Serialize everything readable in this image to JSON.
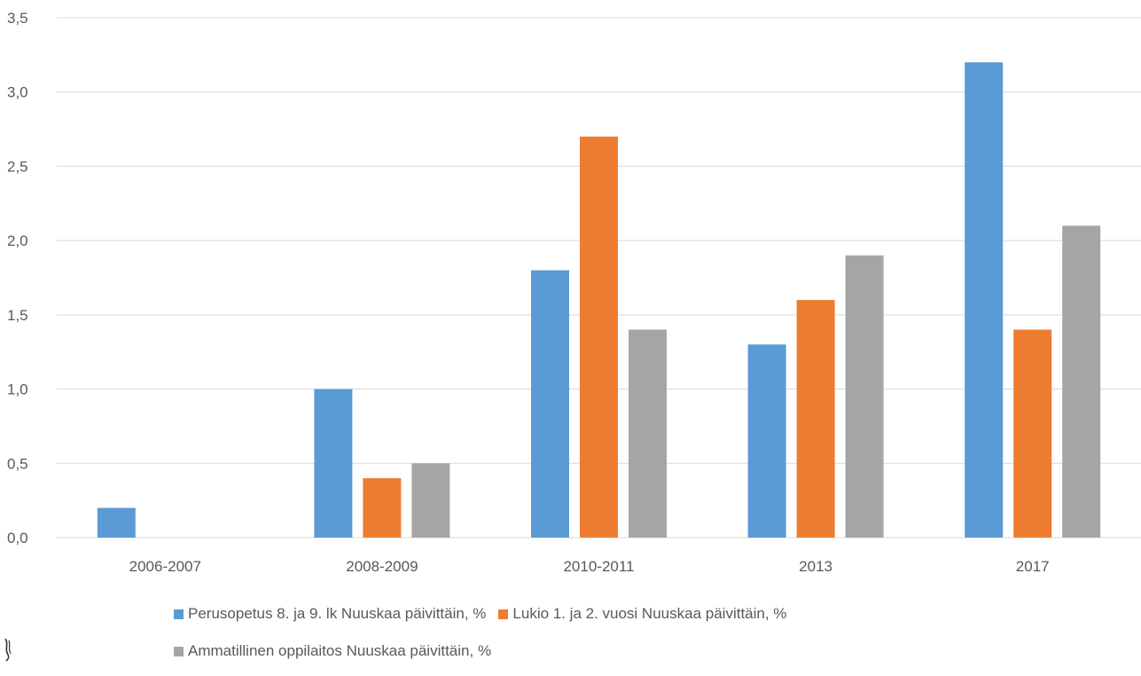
{
  "chart_data": {
    "type": "bar",
    "categories": [
      "2006-2007",
      "2008-2009",
      "2010-2011",
      "2013",
      "2017"
    ],
    "series": [
      {
        "name": "Perusopetus 8. ja 9. lk Nuuskaa päivittäin, %",
        "color": "#5b9bd5",
        "values": [
          0.2,
          1.0,
          1.8,
          1.3,
          3.2
        ]
      },
      {
        "name": "Lukio 1. ja 2. vuosi Nuuskaa päivittäin, %",
        "color": "#ed7d31",
        "values": [
          null,
          0.4,
          2.7,
          1.6,
          1.4
        ]
      },
      {
        "name": "Ammatillinen oppilaitos Nuuskaa päivittäin, %",
        "color": "#a5a5a5",
        "values": [
          null,
          0.5,
          1.4,
          1.9,
          2.1
        ]
      }
    ],
    "yticks": [
      "0,0",
      "0,5",
      "1,0",
      "1,5",
      "2,0",
      "2,5",
      "3,0",
      "3,5"
    ],
    "ylim": [
      0,
      3.5
    ],
    "grid": true,
    "legend_position": "bottom"
  }
}
